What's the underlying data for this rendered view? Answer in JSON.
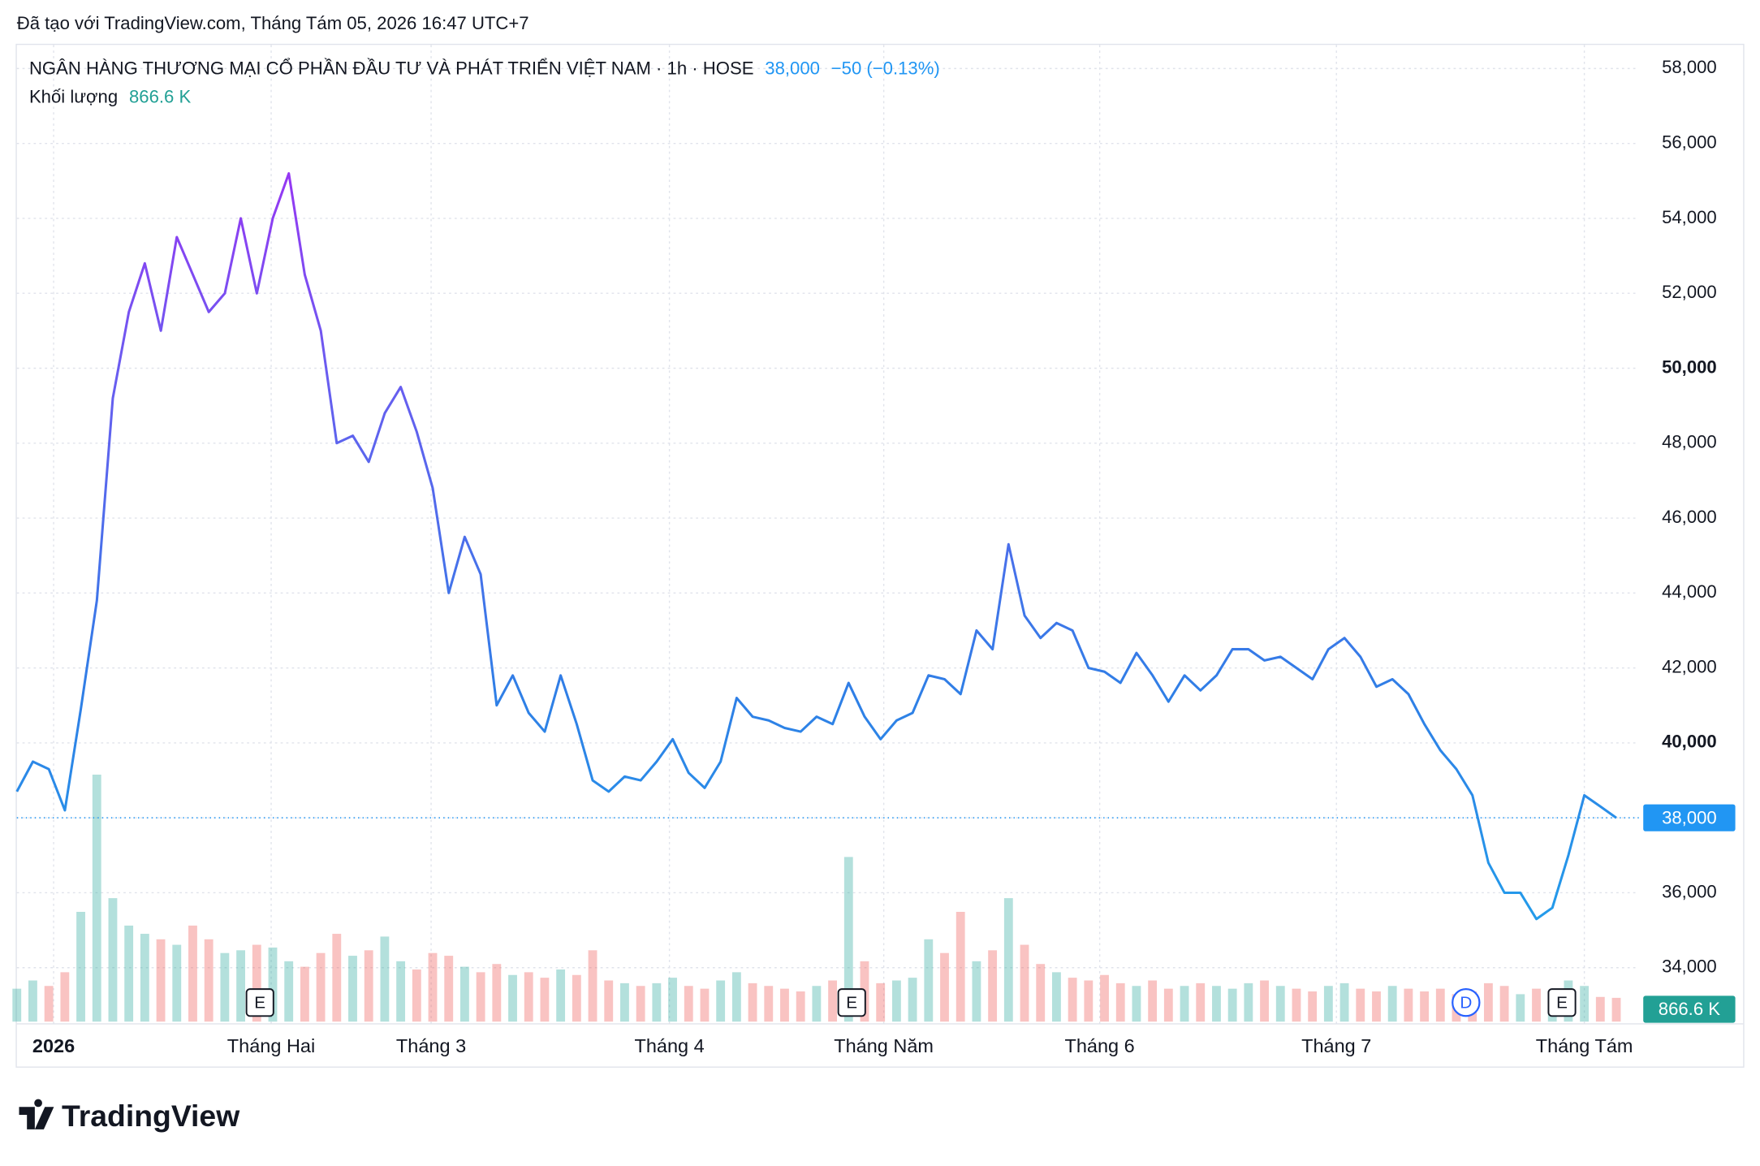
{
  "header": {
    "created": "Đã tạo với TradingView.com, Tháng Tám 05, 2026 16:47 UTC+7"
  },
  "footer": {
    "logo": "TradingView"
  },
  "chart_data": {
    "type": "line",
    "title": "NGÂN HÀNG THƯƠNG MẠI CỔ PHẦN ĐẦU TƯ VÀ PHÁT TRIỂN VIỆT NAM · 1h · HOSE",
    "change": "−50 (−0.13%)",
    "last_price": {
      "value": 38000,
      "label": "38,000"
    },
    "series": [
      {
        "name": "price",
        "color_stops": [
          "#b21ff5",
          "#6a5cf0",
          "#2f7fe6",
          "#1ea8ec"
        ],
        "values": [
          38700,
          39500,
          39300,
          38200,
          40900,
          43800,
          49200,
          51500,
          52800,
          51000,
          53500,
          52500,
          51500,
          52000,
          54000,
          52000,
          54000,
          55200,
          52500,
          51000,
          48000,
          48200,
          47500,
          48800,
          49500,
          48300,
          46800,
          44000,
          45500,
          44500,
          41000,
          41800,
          40800,
          40300,
          41800,
          40500,
          39000,
          38700,
          39100,
          39000,
          39500,
          40100,
          39200,
          38800,
          39500,
          41200,
          40700,
          40600,
          40400,
          40300,
          40700,
          40500,
          41600,
          40700,
          40100,
          40600,
          40800,
          41800,
          41700,
          41300,
          43000,
          42500,
          45300,
          43400,
          42800,
          43200,
          43000,
          42000,
          41900,
          41600,
          42400,
          41800,
          41100,
          41800,
          41400,
          41800,
          42500,
          42500,
          42200,
          42300,
          42000,
          41700,
          42500,
          42800,
          42300,
          41500,
          41700,
          41300,
          40500,
          39800,
          39300,
          38600,
          36800,
          36000,
          36000,
          35300,
          35600,
          37000,
          38600,
          38300,
          38000
        ]
      }
    ],
    "volume": {
      "name": "Khối lượng",
      "last_label": "866.6 K",
      "up_color": "#26a69a",
      "down_color": "#ef5350",
      "label_color": "#22a095",
      "values": [
        1200,
        1500,
        1300,
        1800,
        4000,
        9000,
        4500,
        3500,
        3200,
        3000,
        2800,
        3500,
        3000,
        2500,
        2600,
        2800,
        2700,
        2200,
        2000,
        2500,
        3200,
        2400,
        2600,
        3100,
        2200,
        1900,
        2500,
        2400,
        2000,
        1800,
        2100,
        1700,
        1800,
        1600,
        1900,
        1700,
        2600,
        1500,
        1400,
        1300,
        1400,
        1600,
        1300,
        1200,
        1500,
        1800,
        1400,
        1300,
        1200,
        1100,
        1300,
        1500,
        6000,
        2200,
        1400,
        1500,
        1600,
        3000,
        2500,
        4000,
        2200,
        2600,
        4500,
        2800,
        2100,
        1800,
        1600,
        1500,
        1700,
        1400,
        1300,
        1500,
        1200,
        1300,
        1400,
        1300,
        1200,
        1400,
        1500,
        1300,
        1200,
        1100,
        1300,
        1400,
        1200,
        1100,
        1300,
        1200,
        1100,
        1200,
        1000,
        1100,
        1400,
        1300,
        1000,
        1200,
        1100,
        1500,
        1300,
        900,
        866.6
      ]
    },
    "xlim": [
      0,
      100
    ],
    "xticks": [
      {
        "value": 2.3,
        "label": "2026",
        "bold": true
      },
      {
        "value": 15.9,
        "label": "Tháng Hai"
      },
      {
        "value": 25.9,
        "label": "Tháng 3"
      },
      {
        "value": 40.8,
        "label": "Tháng 4"
      },
      {
        "value": 54.2,
        "label": "Tháng Năm"
      },
      {
        "value": 67.7,
        "label": "Tháng 6"
      },
      {
        "value": 82.5,
        "label": "Tháng 7"
      },
      {
        "value": 98.0,
        "label": "Tháng Tám"
      }
    ],
    "ylim": [
      32560,
      58630
    ],
    "yticks": [
      {
        "value": 34000,
        "label": "34,000"
      },
      {
        "value": 36000,
        "label": "36,000"
      },
      {
        "value": 38000,
        "label": "38,000"
      },
      {
        "value": 40000,
        "label": "40,000",
        "bold": true
      },
      {
        "value": 42000,
        "label": "42,000"
      },
      {
        "value": 44000,
        "label": "44,000"
      },
      {
        "value": 46000,
        "label": "46,000"
      },
      {
        "value": 48000,
        "label": "48,000"
      },
      {
        "value": 50000,
        "label": "50,000",
        "bold": true
      },
      {
        "value": 52000,
        "label": "52,000"
      },
      {
        "value": 54000,
        "label": "54,000"
      },
      {
        "value": 56000,
        "label": "56,000"
      },
      {
        "value": 58000,
        "label": "58,000"
      }
    ],
    "events": [
      {
        "x": 15.2,
        "label": "E"
      },
      {
        "x": 52.2,
        "label": "E"
      },
      {
        "x": 90.6,
        "label": "D",
        "color": "#2962ff"
      },
      {
        "x": 96.6,
        "label": "E"
      }
    ],
    "price_color": "#2196f3",
    "grid": true
  }
}
